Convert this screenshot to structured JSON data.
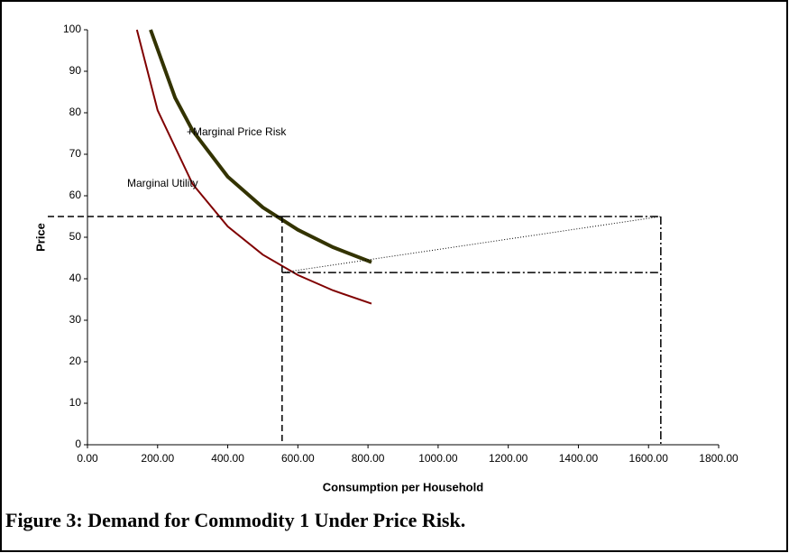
{
  "chart_data": {
    "type": "line",
    "caption": "Figure 3:  Demand for Commodity 1 Under Price Risk.",
    "x_label": "Consumption per Household",
    "y_label": "Price",
    "series": [
      {
        "name": "Marginal Utility",
        "color": "#800000",
        "width": 2,
        "x": [
          141,
          200,
          300,
          400,
          500,
          600,
          700,
          810
        ],
        "values": [
          100,
          80.6,
          62.8,
          52.6,
          45.8,
          40.9,
          37.2,
          34.0
        ]
      },
      {
        "name": "+Marginal Price Risk",
        "color": "#333300",
        "width": 4,
        "x": [
          180,
          250,
          300,
          400,
          500,
          600,
          700,
          810
        ],
        "values": [
          100,
          83.6,
          75.7,
          64.6,
          57.2,
          51.8,
          47.6,
          44.0
        ]
      }
    ],
    "price_levels": [
      55,
      41.5
    ],
    "quantity_levels": [
      555,
      1635
    ],
    "xlim": [
      0,
      1800
    ],
    "xticks": [
      {
        "value": 0,
        "label": "0.00"
      },
      {
        "value": 200,
        "label": "200.00"
      },
      {
        "value": 400,
        "label": "400.00"
      },
      {
        "value": 600,
        "label": "600.00"
      },
      {
        "value": 800,
        "label": "800.00"
      },
      {
        "value": 1000,
        "label": "1000.00"
      },
      {
        "value": 1200,
        "label": "1200.00"
      },
      {
        "value": 1400,
        "label": "1400.00"
      },
      {
        "value": 1600,
        "label": "1600.00"
      },
      {
        "value": 1800,
        "label": "1800.00"
      }
    ],
    "ylim": [
      0,
      100
    ],
    "yticks": [
      0,
      10,
      20,
      30,
      40,
      50,
      60,
      70,
      80,
      90,
      100
    ],
    "grid": false
  }
}
